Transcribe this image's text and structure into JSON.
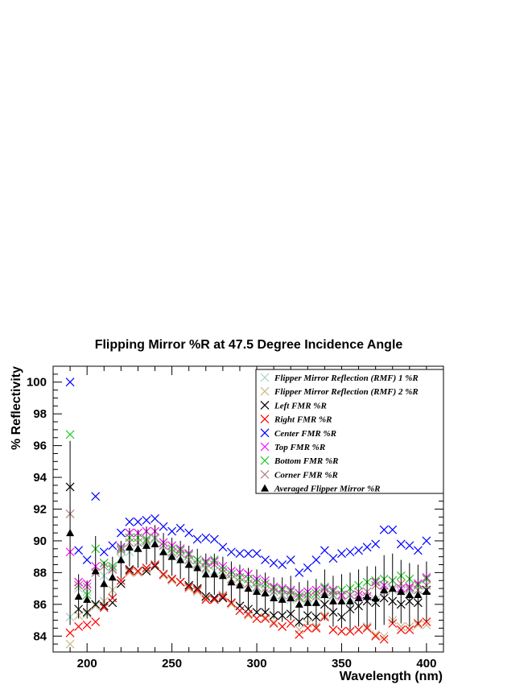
{
  "chart_data": {
    "type": "scatter",
    "title": "Flipping Mirror %R at 47.5 Degree Incidence Angle",
    "xlabel": "Wavelength (nm)",
    "ylabel": "% Reflectivity",
    "xlim": [
      180,
      410
    ],
    "ylim": [
      83,
      101
    ],
    "xticks": [
      200,
      250,
      300,
      350,
      400
    ],
    "yticks": [
      84,
      86,
      88,
      90,
      92,
      94,
      96,
      98,
      100
    ],
    "grid": false,
    "legend_position": "top-right",
    "x": [
      190,
      195,
      200,
      205,
      210,
      215,
      220,
      225,
      230,
      235,
      240,
      245,
      250,
      255,
      260,
      265,
      270,
      275,
      280,
      285,
      290,
      295,
      300,
      305,
      310,
      315,
      320,
      325,
      330,
      335,
      340,
      345,
      350,
      355,
      360,
      365,
      370,
      375,
      380,
      385,
      390,
      395,
      400
    ],
    "series": [
      {
        "name": "Flipper Mirror Reflection (RMF) 1 %R",
        "marker": "x",
        "color": "#9fd3c8",
        "values": [
          85.2,
          87.0,
          86.8,
          88.0,
          87.8,
          88.3,
          88.9,
          89.3,
          89.6,
          89.9,
          90.1,
          89.4,
          89.2,
          89.0,
          88.6,
          88.6,
          88.2,
          88.1,
          88.0,
          87.6,
          87.4,
          87.3,
          87.0,
          86.8,
          86.6,
          86.5,
          86.3,
          86.4,
          86.3,
          86.2,
          86.6,
          86.5,
          86.6,
          86.4,
          86.4,
          86.5,
          86.3,
          87.0,
          86.9,
          86.8,
          86.9,
          86.6,
          86.9
        ]
      },
      {
        "name": "Flipper Mirror Reflection (RMF) 2 %R",
        "marker": "x",
        "color": "#c9b98a",
        "values": [
          83.5,
          85.3,
          85.4,
          85.9,
          86.2,
          86.9,
          87.5,
          88.0,
          88.0,
          88.2,
          88.4,
          87.8,
          87.5,
          87.4,
          87.0,
          86.8,
          86.4,
          86.3,
          86.6,
          86.0,
          85.6,
          85.3,
          85.1,
          85.2,
          84.9,
          84.6,
          84.8,
          84.4,
          84.8,
          84.6,
          85.3,
          84.4,
          84.3,
          84.3,
          84.4,
          84.6,
          84.1,
          84.0,
          85.0,
          84.6,
          84.6,
          84.7,
          84.7
        ]
      },
      {
        "name": "Left FMR %R",
        "marker": "x",
        "color": "#000000",
        "values": [
          93.4,
          85.7,
          85.5,
          86.0,
          85.9,
          86.1,
          87.3,
          88.2,
          88.1,
          88.1,
          88.4,
          87.9,
          87.6,
          87.4,
          87.2,
          87.0,
          86.5,
          86.4,
          86.4,
          86.1,
          85.9,
          85.7,
          85.5,
          85.5,
          85.3,
          85.3,
          85.4,
          84.9,
          85.3,
          85.2,
          86.0,
          85.5,
          85.2,
          85.7,
          85.9,
          86.2,
          86.1,
          86.4,
          86.2,
          86.0,
          86.2,
          86.1,
          86.9
        ]
      },
      {
        "name": "Right FMR %R",
        "marker": "x",
        "color": "#ff0000",
        "values": [
          84.2,
          84.6,
          84.7,
          84.9,
          85.8,
          86.4,
          87.5,
          88.1,
          88.1,
          88.3,
          88.5,
          87.9,
          87.6,
          87.4,
          87.1,
          86.9,
          86.3,
          86.3,
          86.5,
          86.1,
          85.6,
          85.4,
          85.1,
          85.1,
          84.8,
          84.6,
          84.8,
          84.1,
          84.5,
          84.5,
          85.2,
          84.4,
          84.3,
          84.3,
          84.4,
          84.5,
          84.0,
          83.8,
          84.8,
          84.4,
          84.4,
          84.8,
          84.9
        ]
      },
      {
        "name": "Center FMR %R",
        "marker": "x",
        "color": "#0000ff",
        "values": [
          100.0,
          89.4,
          88.8,
          92.8,
          89.3,
          89.7,
          90.5,
          91.2,
          91.2,
          91.3,
          91.4,
          90.9,
          90.6,
          90.8,
          90.5,
          90.1,
          90.2,
          90.1,
          89.6,
          89.3,
          89.2,
          89.2,
          89.2,
          88.8,
          88.6,
          88.5,
          88.8,
          88.0,
          88.3,
          88.8,
          89.4,
          88.9,
          89.2,
          89.3,
          89.4,
          89.6,
          89.8,
          90.7,
          90.7,
          89.8,
          89.7,
          89.4,
          90.0
        ]
      },
      {
        "name": "Top FMR %R",
        "marker": "x",
        "color": "#ff00ff",
        "values": [
          89.3,
          87.4,
          87.3,
          88.4,
          88.6,
          88.2,
          89.6,
          90.5,
          90.5,
          90.6,
          90.6,
          89.9,
          89.7,
          89.5,
          89.2,
          88.8,
          88.7,
          88.7,
          88.4,
          88.1,
          88.0,
          87.9,
          87.6,
          87.5,
          87.1,
          87.0,
          86.9,
          86.7,
          86.8,
          86.9,
          87.0,
          86.9,
          86.6,
          86.6,
          86.6,
          86.5,
          87.4,
          87.2,
          87.5,
          87.0,
          87.1,
          87.3,
          87.7
        ]
      },
      {
        "name": "Bottom FMR %R",
        "marker": "x",
        "color": "#22cc22",
        "values": [
          96.7,
          87.2,
          86.6,
          89.5,
          88.6,
          88.4,
          89.5,
          90.2,
          90.2,
          90.1,
          90.2,
          89.7,
          89.5,
          89.4,
          89.1,
          88.8,
          88.6,
          88.8,
          88.2,
          87.9,
          87.7,
          87.6,
          87.4,
          87.3,
          87.0,
          86.9,
          86.8,
          86.5,
          86.6,
          86.7,
          87.1,
          86.8,
          86.9,
          87.0,
          87.2,
          87.4,
          87.5,
          87.6,
          87.5,
          87.8,
          87.6,
          87.2,
          87.6
        ]
      },
      {
        "name": "Corner FMR %R",
        "marker": "x",
        "color": "#b08080",
        "values": [
          91.7,
          87.2,
          87.1,
          88.0,
          88.4,
          88.2,
          89.4,
          89.9,
          89.9,
          90.0,
          90.2,
          89.7,
          89.3,
          89.2,
          88.8,
          88.5,
          88.3,
          88.5,
          88.0,
          87.6,
          87.4,
          87.3,
          87.1,
          87.0,
          86.8,
          86.6,
          86.6,
          86.4,
          86.4,
          86.5,
          86.8,
          86.6,
          86.5,
          86.6,
          86.8,
          86.8,
          87.2,
          86.8,
          87.0,
          87.3,
          87.0,
          86.9,
          87.2
        ]
      },
      {
        "name": "Averaged Flipper Mirror %R",
        "marker": "triangle",
        "color": "#000000",
        "values": [
          90.5,
          86.5,
          86.3,
          88.1,
          87.3,
          87.7,
          88.8,
          89.6,
          89.5,
          89.7,
          89.8,
          89.3,
          89.0,
          88.8,
          88.5,
          88.3,
          87.9,
          87.9,
          87.8,
          87.4,
          87.2,
          87.0,
          86.8,
          86.7,
          86.4,
          86.3,
          86.4,
          86.0,
          86.1,
          86.1,
          86.6,
          86.2,
          86.2,
          86.2,
          86.4,
          86.5,
          86.4,
          86.9,
          87.0,
          86.8,
          86.6,
          86.6,
          86.8
        ],
        "errors": [
          5.8,
          1.4,
          1.2,
          2.2,
          1.4,
          1.3,
          1.2,
          1.2,
          1.2,
          1.2,
          1.2,
          1.2,
          1.2,
          1.2,
          1.2,
          1.2,
          1.3,
          1.3,
          1.2,
          1.3,
          1.3,
          1.3,
          1.4,
          1.3,
          1.3,
          1.4,
          1.4,
          1.4,
          1.4,
          1.5,
          1.6,
          1.6,
          1.7,
          1.8,
          1.8,
          1.9,
          2.0,
          2.2,
          2.2,
          2.0,
          2.0,
          1.9,
          1.9
        ]
      }
    ]
  }
}
